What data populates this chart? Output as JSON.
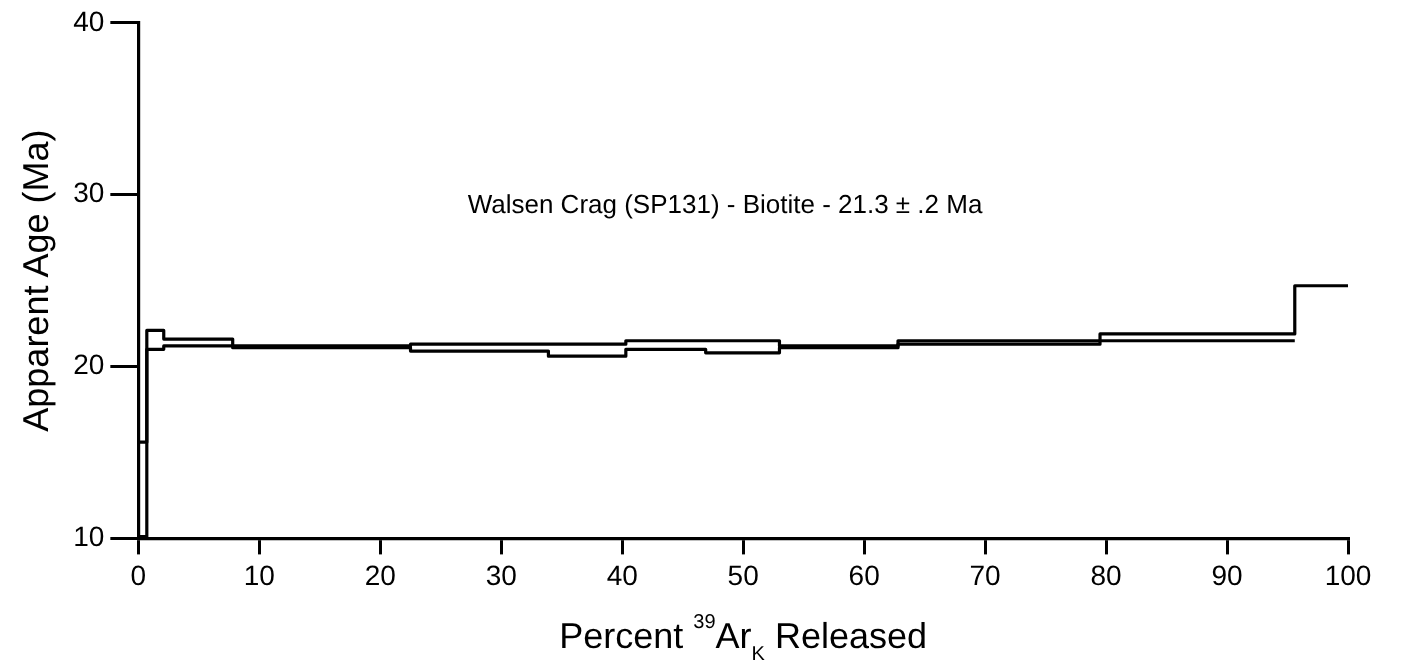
{
  "chart_data": {
    "type": "step",
    "xlabel": "Percent $^{39}$Ar$_{K}$ Released",
    "ylabel": "Apparent Age (Ma)",
    "annotations": [
      "Walsen Crag (SP131) - Biotite - 21.3 ± .2 Ma"
    ],
    "x": [
      0,
      0.7,
      2.1,
      7.8,
      22.5,
      33.9,
      40.3,
      46.9,
      53.0,
      62.8,
      79.5,
      95.6,
      100
    ],
    "series": [
      {
        "color": "#000000",
        "values": [
          15.6,
          22.1,
          21.6,
          21.2,
          21.3,
          21.3,
          21.5,
          21.5,
          21.2,
          21.5,
          21.9,
          24.7,
          24.7
        ]
      },
      {
        "color": "#000000",
        "x": [
          0,
          0.7,
          2.1,
          7.8,
          22.5,
          33.9,
          40.3,
          46.9,
          53.0,
          62.8,
          79.5,
          95.6
        ],
        "values": [
          10.1,
          21.0,
          21.2,
          21.1,
          20.9,
          20.6,
          21.0,
          20.8,
          21.1,
          21.3,
          21.5,
          21.5
        ]
      }
    ],
    "xlim": [
      0,
      100
    ],
    "xticks": [
      0,
      10,
      20,
      30,
      40,
      50,
      60,
      70,
      80,
      90,
      100
    ],
    "ylim": [
      10,
      40
    ],
    "yticks": [
      10,
      20,
      30,
      40
    ],
    "grid": false,
    "legend": false,
    "line_style": "solid",
    "marker": "none"
  }
}
